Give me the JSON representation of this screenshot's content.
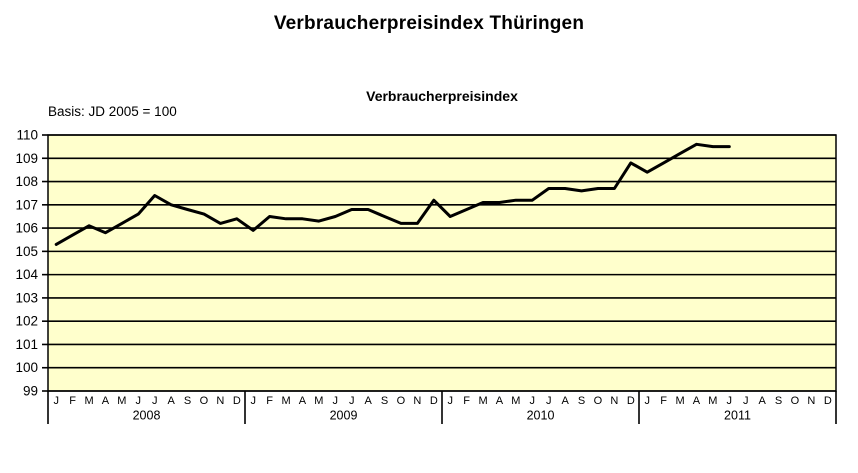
{
  "page": {
    "title": "Verbraucherpreisindex Thüringen",
    "subtitle": "Verbraucherpreisindex",
    "basis": "Basis: JD 2005 = 100"
  },
  "chart_data": {
    "type": "line",
    "title": "Verbraucherpreisindex Thüringen",
    "subtitle": "Verbraucherpreisindex",
    "basis_note": "Basis: JD 2005 = 100",
    "ylim": [
      99,
      110
    ],
    "y_tick_step": 1,
    "y_tick_labels": [
      "99",
      "100",
      "101",
      "102",
      "103",
      "104",
      "105",
      "106",
      "107",
      "108",
      "109",
      "110"
    ],
    "month_labels": [
      "J",
      "F",
      "M",
      "A",
      "M",
      "J",
      "J",
      "A",
      "S",
      "O",
      "N",
      "D"
    ],
    "years": [
      "2008",
      "2009",
      "2010",
      "2011"
    ],
    "grid": true,
    "legend_position": "none",
    "plot_bg_color": "#ffffcc",
    "line_color": "#000000",
    "grid_color": "#000000",
    "series": [
      {
        "name": "Verbraucherpreisindex Thüringen (JD 2005 = 100)",
        "start": "2008-01",
        "end": "2011-06",
        "values": [
          105.3,
          105.7,
          106.1,
          105.8,
          106.2,
          106.6,
          107.4,
          107.0,
          106.8,
          106.6,
          106.2,
          106.4,
          105.9,
          106.5,
          106.4,
          106.4,
          106.3,
          106.5,
          106.8,
          106.8,
          106.5,
          106.2,
          106.2,
          107.2,
          106.5,
          106.8,
          107.1,
          107.1,
          107.2,
          107.2,
          107.7,
          107.7,
          107.6,
          107.7,
          107.7,
          108.8,
          108.4,
          108.8,
          109.2,
          109.6,
          109.5,
          109.5
        ]
      }
    ]
  }
}
